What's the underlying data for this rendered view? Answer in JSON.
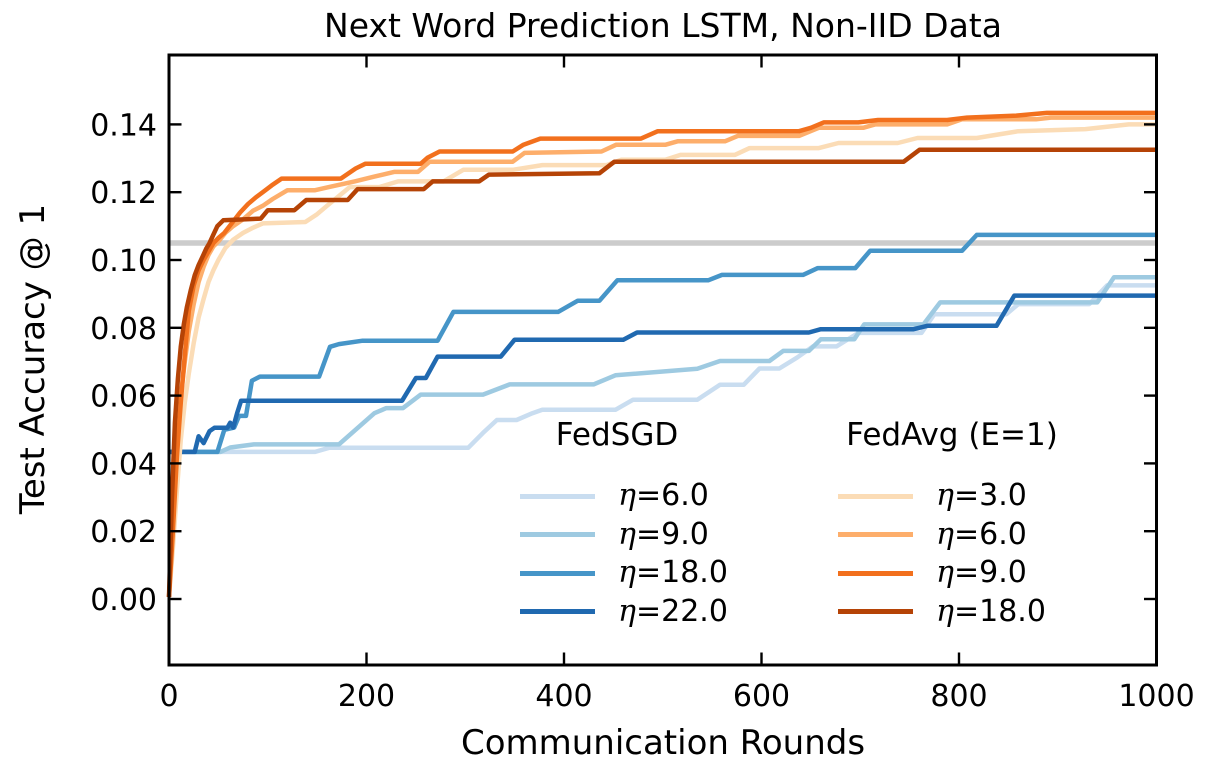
{
  "chart_data": {
    "type": "line",
    "title": "Next Word Prediction LSTM, Non-IID Data",
    "xlabel": "Communication Rounds",
    "ylabel": "Test Accuracy @ 1",
    "xlim": [
      0,
      1000
    ],
    "ylim": [
      -0.019,
      0.16
    ],
    "xticks": [
      0,
      200,
      400,
      600,
      800,
      1000
    ],
    "yticks": [
      0.0,
      0.02,
      0.04,
      0.06,
      0.08,
      0.1,
      0.12,
      0.14
    ],
    "grid": false,
    "legend_position": "lower-center-two-columns",
    "baseline": {
      "y": 0.105,
      "color": "#cccccc",
      "name": "gray-reference-line"
    },
    "legend_groups": [
      {
        "title": "FedSGD",
        "entries": [
          "η=6.0",
          "η=9.0",
          "η=18.0",
          "η=22.0"
        ]
      },
      {
        "title": "FedAvg (E=1)",
        "entries": [
          "η=3.0",
          "η=6.0",
          "η=9.0",
          "η=18.0"
        ]
      }
    ],
    "series": [
      {
        "group": 0,
        "label": "η=6.0",
        "color": "#c9ddf0",
        "points": [
          [
            0,
            0.0434
          ],
          [
            148,
            0.0434
          ],
          [
            162,
            0.0446
          ],
          [
            303,
            0.0446
          ],
          [
            318,
            0.049
          ],
          [
            332,
            0.0528
          ],
          [
            352,
            0.0528
          ],
          [
            368,
            0.0548
          ],
          [
            378,
            0.0558
          ],
          [
            452,
            0.0558
          ],
          [
            470,
            0.0588
          ],
          [
            535,
            0.0588
          ],
          [
            558,
            0.0632
          ],
          [
            582,
            0.0632
          ],
          [
            598,
            0.068
          ],
          [
            618,
            0.068
          ],
          [
            636,
            0.0712
          ],
          [
            652,
            0.0745
          ],
          [
            676,
            0.0745
          ],
          [
            698,
            0.0785
          ],
          [
            762,
            0.0785
          ],
          [
            775,
            0.084
          ],
          [
            848,
            0.084
          ],
          [
            860,
            0.087
          ],
          [
            932,
            0.087
          ],
          [
            950,
            0.0925
          ],
          [
            1000,
            0.0925
          ]
        ]
      },
      {
        "group": 0,
        "label": "η=9.0",
        "color": "#9ecae1",
        "points": [
          [
            0,
            0.0434
          ],
          [
            52,
            0.0434
          ],
          [
            62,
            0.0447
          ],
          [
            86,
            0.0456
          ],
          [
            172,
            0.0456
          ],
          [
            208,
            0.0548
          ],
          [
            220,
            0.0563
          ],
          [
            237,
            0.0563
          ],
          [
            255,
            0.0603
          ],
          [
            318,
            0.0603
          ],
          [
            345,
            0.0633
          ],
          [
            430,
            0.0633
          ],
          [
            452,
            0.066
          ],
          [
            535,
            0.0679
          ],
          [
            558,
            0.0702
          ],
          [
            608,
            0.0702
          ],
          [
            622,
            0.0732
          ],
          [
            648,
            0.0732
          ],
          [
            660,
            0.0766
          ],
          [
            694,
            0.0766
          ],
          [
            704,
            0.081
          ],
          [
            764,
            0.081
          ],
          [
            781,
            0.0875
          ],
          [
            940,
            0.0875
          ],
          [
            957,
            0.0949
          ],
          [
            1000,
            0.0949
          ]
        ]
      },
      {
        "group": 0,
        "label": "η=18.0",
        "color": "#4695c8",
        "points": [
          [
            0,
            0.0434
          ],
          [
            49,
            0.0434
          ],
          [
            56,
            0.0499
          ],
          [
            66,
            0.0506
          ],
          [
            71,
            0.054
          ],
          [
            78,
            0.054
          ],
          [
            84,
            0.0644
          ],
          [
            92,
            0.0656
          ],
          [
            152,
            0.0656
          ],
          [
            163,
            0.0744
          ],
          [
            172,
            0.0752
          ],
          [
            196,
            0.0762
          ],
          [
            272,
            0.0762
          ],
          [
            288,
            0.0847
          ],
          [
            394,
            0.0847
          ],
          [
            414,
            0.088
          ],
          [
            436,
            0.088
          ],
          [
            454,
            0.094
          ],
          [
            546,
            0.094
          ],
          [
            560,
            0.0956
          ],
          [
            642,
            0.0956
          ],
          [
            657,
            0.0976
          ],
          [
            695,
            0.0976
          ],
          [
            710,
            0.1027
          ],
          [
            803,
            0.1027
          ],
          [
            818,
            0.1074
          ],
          [
            1000,
            0.1074
          ]
        ]
      },
      {
        "group": 0,
        "label": "η=22.0",
        "color": "#2069b0",
        "points": [
          [
            0,
            0.0434
          ],
          [
            26,
            0.0434
          ],
          [
            30,
            0.048
          ],
          [
            35,
            0.046
          ],
          [
            41,
            0.0495
          ],
          [
            46,
            0.0505
          ],
          [
            59,
            0.0505
          ],
          [
            62,
            0.052
          ],
          [
            65,
            0.0506
          ],
          [
            69,
            0.0548
          ],
          [
            73,
            0.0585
          ],
          [
            236,
            0.0585
          ],
          [
            250,
            0.0652
          ],
          [
            260,
            0.0652
          ],
          [
            272,
            0.0715
          ],
          [
            336,
            0.0715
          ],
          [
            350,
            0.0765
          ],
          [
            460,
            0.0765
          ],
          [
            474,
            0.0786
          ],
          [
            648,
            0.0786
          ],
          [
            660,
            0.0796
          ],
          [
            754,
            0.0796
          ],
          [
            768,
            0.0806
          ],
          [
            838,
            0.0806
          ],
          [
            856,
            0.0895
          ],
          [
            1000,
            0.0895
          ]
        ]
      },
      {
        "group": 1,
        "label": "η=3.0",
        "color": "#fbdcb6",
        "points": [
          [
            0,
            0.0006
          ],
          [
            4,
            0.015
          ],
          [
            8,
            0.032
          ],
          [
            12,
            0.047
          ],
          [
            16,
            0.058
          ],
          [
            20,
            0.0665
          ],
          [
            25,
            0.0755
          ],
          [
            30,
            0.083
          ],
          [
            35,
            0.0885
          ],
          [
            40,
            0.0935
          ],
          [
            45,
            0.097
          ],
          [
            50,
            0.1
          ],
          [
            57,
            0.1035
          ],
          [
            65,
            0.106
          ],
          [
            75,
            0.108
          ],
          [
            85,
            0.1095
          ],
          [
            95,
            0.1108
          ],
          [
            138,
            0.1112
          ],
          [
            150,
            0.1135
          ],
          [
            160,
            0.116
          ],
          [
            183,
            0.1215
          ],
          [
            213,
            0.1215
          ],
          [
            232,
            0.1232
          ],
          [
            278,
            0.1232
          ],
          [
            298,
            0.1266
          ],
          [
            348,
            0.1266
          ],
          [
            378,
            0.128
          ],
          [
            443,
            0.128
          ],
          [
            458,
            0.1296
          ],
          [
            503,
            0.1296
          ],
          [
            518,
            0.131
          ],
          [
            573,
            0.131
          ],
          [
            588,
            0.133
          ],
          [
            658,
            0.133
          ],
          [
            678,
            0.1345
          ],
          [
            738,
            0.1345
          ],
          [
            758,
            0.136
          ],
          [
            818,
            0.136
          ],
          [
            860,
            0.138
          ],
          [
            928,
            0.1386
          ],
          [
            972,
            0.14
          ],
          [
            1000,
            0.14
          ]
        ]
      },
      {
        "group": 1,
        "label": "η=6.0",
        "color": "#fdae6b",
        "points": [
          [
            0,
            0.0006
          ],
          [
            4,
            0.025
          ],
          [
            8,
            0.046
          ],
          [
            12,
            0.06
          ],
          [
            16,
            0.07
          ],
          [
            20,
            0.079
          ],
          [
            25,
            0.087
          ],
          [
            30,
            0.0935
          ],
          [
            35,
            0.098
          ],
          [
            40,
            0.1015
          ],
          [
            45,
            0.104
          ],
          [
            50,
            0.1055
          ],
          [
            57,
            0.108
          ],
          [
            65,
            0.11
          ],
          [
            75,
            0.112
          ],
          [
            85,
            0.1145
          ],
          [
            95,
            0.116
          ],
          [
            105,
            0.118
          ],
          [
            120,
            0.1206
          ],
          [
            148,
            0.1206
          ],
          [
            163,
            0.1216
          ],
          [
            188,
            0.1232
          ],
          [
            208,
            0.1246
          ],
          [
            228,
            0.126
          ],
          [
            252,
            0.126
          ],
          [
            264,
            0.129
          ],
          [
            348,
            0.129
          ],
          [
            360,
            0.1316
          ],
          [
            438,
            0.132
          ],
          [
            453,
            0.134
          ],
          [
            503,
            0.134
          ],
          [
            515,
            0.135
          ],
          [
            563,
            0.135
          ],
          [
            576,
            0.1366
          ],
          [
            638,
            0.1366
          ],
          [
            658,
            0.139
          ],
          [
            703,
            0.139
          ],
          [
            715,
            0.14
          ],
          [
            788,
            0.14
          ],
          [
            803,
            0.1415
          ],
          [
            878,
            0.1415
          ],
          [
            893,
            0.142
          ],
          [
            1000,
            0.142
          ]
        ]
      },
      {
        "group": 1,
        "label": "η=9.0",
        "color": "#f2701d",
        "points": [
          [
            0,
            0.0006
          ],
          [
            4,
            0.02
          ],
          [
            8,
            0.042
          ],
          [
            12,
            0.058
          ],
          [
            16,
            0.072
          ],
          [
            20,
            0.085
          ],
          [
            25,
            0.0925
          ],
          [
            30,
            0.097
          ],
          [
            35,
            0.1
          ],
          [
            40,
            0.1025
          ],
          [
            45,
            0.105
          ],
          [
            50,
            0.1065
          ],
          [
            56,
            0.108
          ],
          [
            64,
            0.111
          ],
          [
            72,
            0.114
          ],
          [
            80,
            0.1165
          ],
          [
            88,
            0.1185
          ],
          [
            95,
            0.12
          ],
          [
            104,
            0.122
          ],
          [
            114,
            0.124
          ],
          [
            174,
            0.124
          ],
          [
            189,
            0.127
          ],
          [
            199,
            0.1284
          ],
          [
            255,
            0.1284
          ],
          [
            262,
            0.1302
          ],
          [
            274,
            0.132
          ],
          [
            348,
            0.132
          ],
          [
            359,
            0.134
          ],
          [
            376,
            0.1358
          ],
          [
            478,
            0.1358
          ],
          [
            495,
            0.138
          ],
          [
            638,
            0.138
          ],
          [
            650,
            0.139
          ],
          [
            663,
            0.1406
          ],
          [
            698,
            0.1406
          ],
          [
            718,
            0.1413
          ],
          [
            788,
            0.1413
          ],
          [
            808,
            0.142
          ],
          [
            858,
            0.1426
          ],
          [
            889,
            0.1434
          ],
          [
            1000,
            0.1434
          ]
        ]
      },
      {
        "group": 1,
        "label": "η=18.0",
        "color": "#b54306",
        "points": [
          [
            0,
            0.0006
          ],
          [
            3,
            0.03
          ],
          [
            6,
            0.052
          ],
          [
            9,
            0.065
          ],
          [
            12,
            0.0745
          ],
          [
            15,
            0.081
          ],
          [
            18,
            0.086
          ],
          [
            22,
            0.091
          ],
          [
            26,
            0.0955
          ],
          [
            30,
            0.0985
          ],
          [
            34,
            0.101
          ],
          [
            38,
            0.1035
          ],
          [
            41,
            0.105
          ],
          [
            45,
            0.1075
          ],
          [
            49,
            0.11
          ],
          [
            55,
            0.1117
          ],
          [
            93,
            0.1122
          ],
          [
            100,
            0.1147
          ],
          [
            127,
            0.1147
          ],
          [
            139,
            0.1177
          ],
          [
            181,
            0.1177
          ],
          [
            191,
            0.1209
          ],
          [
            258,
            0.1209
          ],
          [
            267,
            0.1232
          ],
          [
            314,
            0.1232
          ],
          [
            324,
            0.1252
          ],
          [
            436,
            0.1256
          ],
          [
            451,
            0.129
          ],
          [
            744,
            0.129
          ],
          [
            760,
            0.1325
          ],
          [
            1000,
            0.1325
          ]
        ]
      }
    ]
  }
}
